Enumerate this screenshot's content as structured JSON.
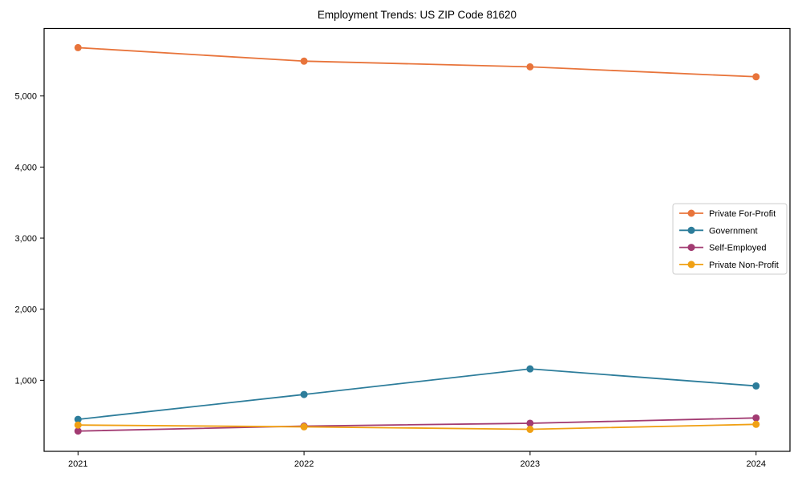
{
  "title": "Employment Trends: US ZIP Code 81620",
  "chart_data": {
    "type": "line",
    "title": "Employment Trends: US ZIP Code 81620",
    "xlabel": "",
    "ylabel": "",
    "x": [
      2021,
      2022,
      2023,
      2024
    ],
    "x_tick_labels": [
      "2021",
      "2022",
      "2023",
      "2024"
    ],
    "series": [
      {
        "name": "Private For-Profit",
        "color": "#e8743b",
        "values": [
          5680,
          5490,
          5410,
          5270
        ]
      },
      {
        "name": "Government",
        "color": "#2d7d9b",
        "values": [
          450,
          800,
          1160,
          920
        ]
      },
      {
        "name": "Self-Employed",
        "color": "#a23b72",
        "values": [
          285,
          355,
          395,
          470
        ]
      },
      {
        "name": "Private Non-Profit",
        "color": "#f0a014",
        "values": [
          370,
          345,
          310,
          380
        ]
      }
    ],
    "yticks": [
      {
        "value": 1000,
        "label": "1,000"
      },
      {
        "value": 2000,
        "label": "2,000"
      },
      {
        "value": 3000,
        "label": "3,000"
      },
      {
        "value": 4000,
        "label": "4,000"
      },
      {
        "value": 5000,
        "label": "5,000"
      }
    ],
    "xlim": [
      2020.85,
      2024.15
    ],
    "ylim": [
      0,
      5950
    ],
    "grid": false,
    "legend_position": "center right",
    "marker": "circle",
    "spine_color": "#000000",
    "legend_border_color": "#cccccc"
  }
}
